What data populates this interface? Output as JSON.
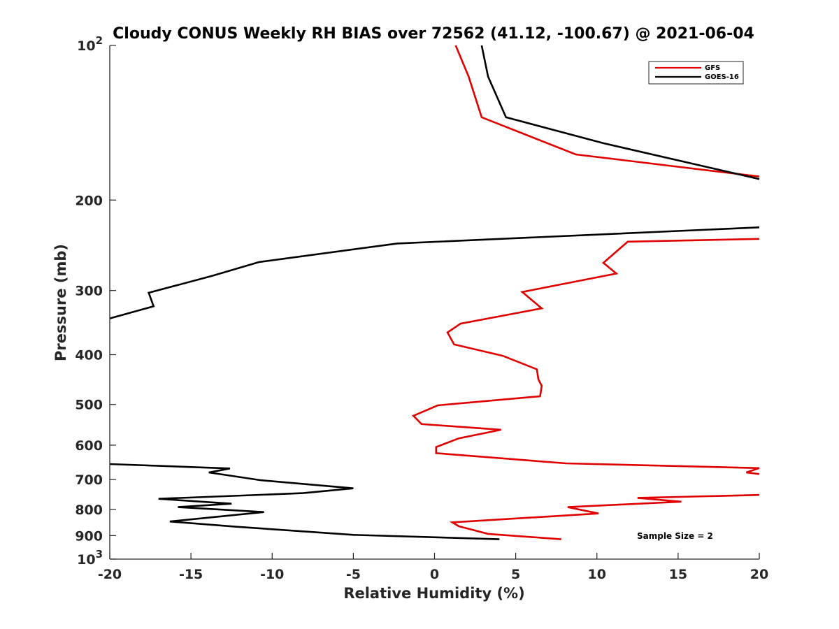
{
  "chart_data": {
    "type": "line",
    "title": "Cloudy CONUS Weekly RH BIAS over 72562 (41.12, -100.67) @ 2021-06-04",
    "xlabel": "Relative Humidity (%)",
    "ylabel": "Pressure (mb)",
    "xlim": [
      -20,
      20
    ],
    "ylim": [
      100,
      1000
    ],
    "yscale": "log",
    "y_reversed": true,
    "grid": false,
    "legend_position": "top-right",
    "xticks": [
      -20,
      -15,
      -10,
      -5,
      0,
      5,
      10,
      15,
      20
    ],
    "xtick_labels": [
      "-20",
      "-15",
      "-10",
      "-5",
      "0",
      "5",
      "10",
      "15",
      "20"
    ],
    "yticks": [
      {
        "value": 100,
        "base": "10",
        "exp": "2"
      },
      {
        "value": 200,
        "label": "200"
      },
      {
        "value": 300,
        "label": "300"
      },
      {
        "value": 400,
        "label": "400"
      },
      {
        "value": 500,
        "label": "500"
      },
      {
        "value": 600,
        "label": "600"
      },
      {
        "value": 700,
        "label": "700"
      },
      {
        "value": 800,
        "label": "800"
      },
      {
        "value": 900,
        "label": "900"
      },
      {
        "value": 1000,
        "base": "10",
        "exp": "3"
      }
    ],
    "annotation": "Sample Size = 2",
    "series": [
      {
        "name": "GFS",
        "color": "#e00000",
        "segments": [
          [
            [
              1.3,
              100
            ],
            [
              2.1,
              115
            ],
            [
              2.9,
              138
            ],
            [
              8.7,
              163
            ],
            [
              20,
              180
            ]
          ],
          [
            [
              20,
              238
            ],
            [
              11.9,
              241
            ],
            [
              10.4,
              265
            ],
            [
              11.2,
              278
            ],
            [
              5.4,
              302
            ],
            [
              6.6,
              325
            ],
            [
              1.6,
              348
            ],
            [
              0.8,
              362
            ],
            [
              1.2,
              382
            ],
            [
              4.2,
              402
            ],
            [
              6.3,
              427
            ],
            [
              6.4,
              447
            ],
            [
              6.6,
              460
            ],
            [
              6.5,
              482
            ],
            [
              0.2,
              502
            ],
            [
              -1.3,
              526
            ],
            [
              -0.8,
              546
            ],
            [
              4.1,
              560
            ],
            [
              1.5,
              582
            ],
            [
              0.1,
              605
            ],
            [
              0.1,
              622
            ],
            [
              8.1,
              651
            ],
            [
              20,
              665
            ],
            [
              19.2,
              678
            ],
            [
              20,
              683
            ]
          ],
          [
            [
              20,
              750
            ],
            [
              12.5,
              760
            ],
            [
              15.2,
              773
            ],
            [
              8.2,
              792
            ],
            [
              10.1,
              815
            ],
            [
              1.1,
              848
            ],
            [
              1.5,
              863
            ],
            [
              3.3,
              893
            ],
            [
              7.8,
              915
            ]
          ]
        ]
      },
      {
        "name": "GOES-16",
        "color": "#000000",
        "segments": [
          [
            [
              2.9,
              100
            ],
            [
              3.3,
              115
            ],
            [
              4.4,
              138
            ],
            [
              10.4,
              155
            ],
            [
              20,
              182
            ]
          ],
          [
            [
              20,
              226
            ],
            [
              -2.3,
              243
            ],
            [
              -10.8,
              264
            ],
            [
              -13.7,
              281
            ],
            [
              -17.6,
              303
            ],
            [
              -17.3,
              322
            ],
            [
              -20,
              340
            ]
          ],
          [
            [
              -20,
              653
            ],
            [
              -12.6,
              666
            ],
            [
              -13.9,
              678
            ],
            [
              -10.7,
              702
            ],
            [
              -5.0,
              728
            ],
            [
              -8.1,
              744
            ],
            [
              -17.0,
              763
            ],
            [
              -12.5,
              780
            ],
            [
              -15.8,
              792
            ],
            [
              -10.5,
              810
            ],
            [
              -16.3,
              845
            ],
            [
              -12.2,
              865
            ],
            [
              -5.0,
              897
            ],
            [
              4.0,
              915
            ]
          ]
        ]
      }
    ]
  }
}
